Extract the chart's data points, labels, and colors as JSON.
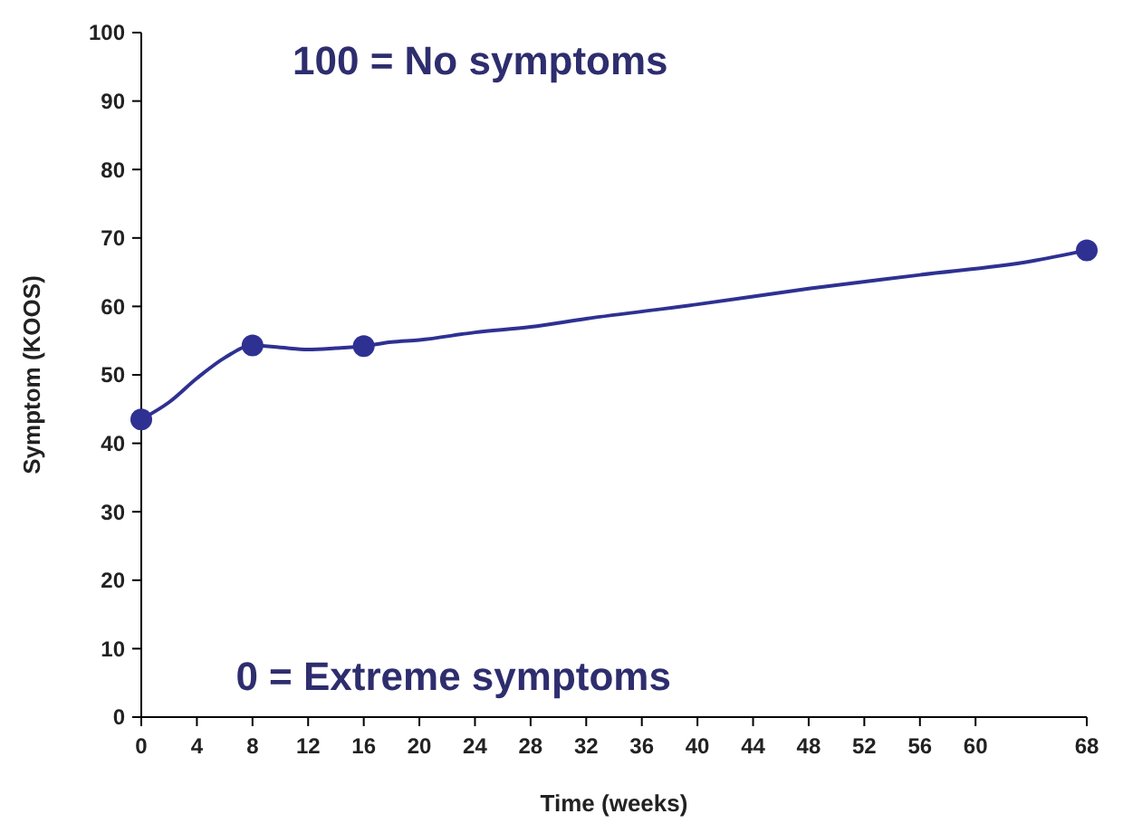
{
  "chart_data": {
    "type": "line",
    "xlabel": "Time (weeks)",
    "ylabel": "Symptom (KOOS)",
    "annotations": [
      "100 = No symptoms",
      "0 = Extreme symptoms"
    ],
    "xlim": [
      0,
      68
    ],
    "xticks": [
      0,
      4,
      8,
      12,
      16,
      20,
      24,
      28,
      32,
      36,
      40,
      44,
      48,
      52,
      56,
      60,
      68
    ],
    "ylim": [
      0,
      100
    ],
    "yticks": [
      0,
      10,
      20,
      30,
      40,
      50,
      60,
      70,
      80,
      90,
      100
    ],
    "grid": false,
    "series": [
      {
        "type": "line",
        "color": "#2e3192",
        "marker": "none",
        "line_style": "solid",
        "x": [
          0,
          2,
          4,
          6,
          8,
          10,
          12,
          14,
          16,
          18,
          20,
          24,
          28,
          32,
          40,
          48,
          56,
          64,
          68
        ],
        "values": [
          43.5,
          46,
          49.5,
          52.5,
          54.3,
          54,
          53.7,
          53.9,
          54.2,
          54.8,
          55.1,
          56.2,
          57,
          58.2,
          60.3,
          62.6,
          64.6,
          66.6,
          68.2
        ]
      },
      {
        "type": "scatter",
        "color": "#2e3192",
        "marker": "circle",
        "x": [
          0,
          8,
          16,
          68
        ],
        "values": [
          43.5,
          54.3,
          54.2,
          68.2
        ]
      }
    ]
  }
}
